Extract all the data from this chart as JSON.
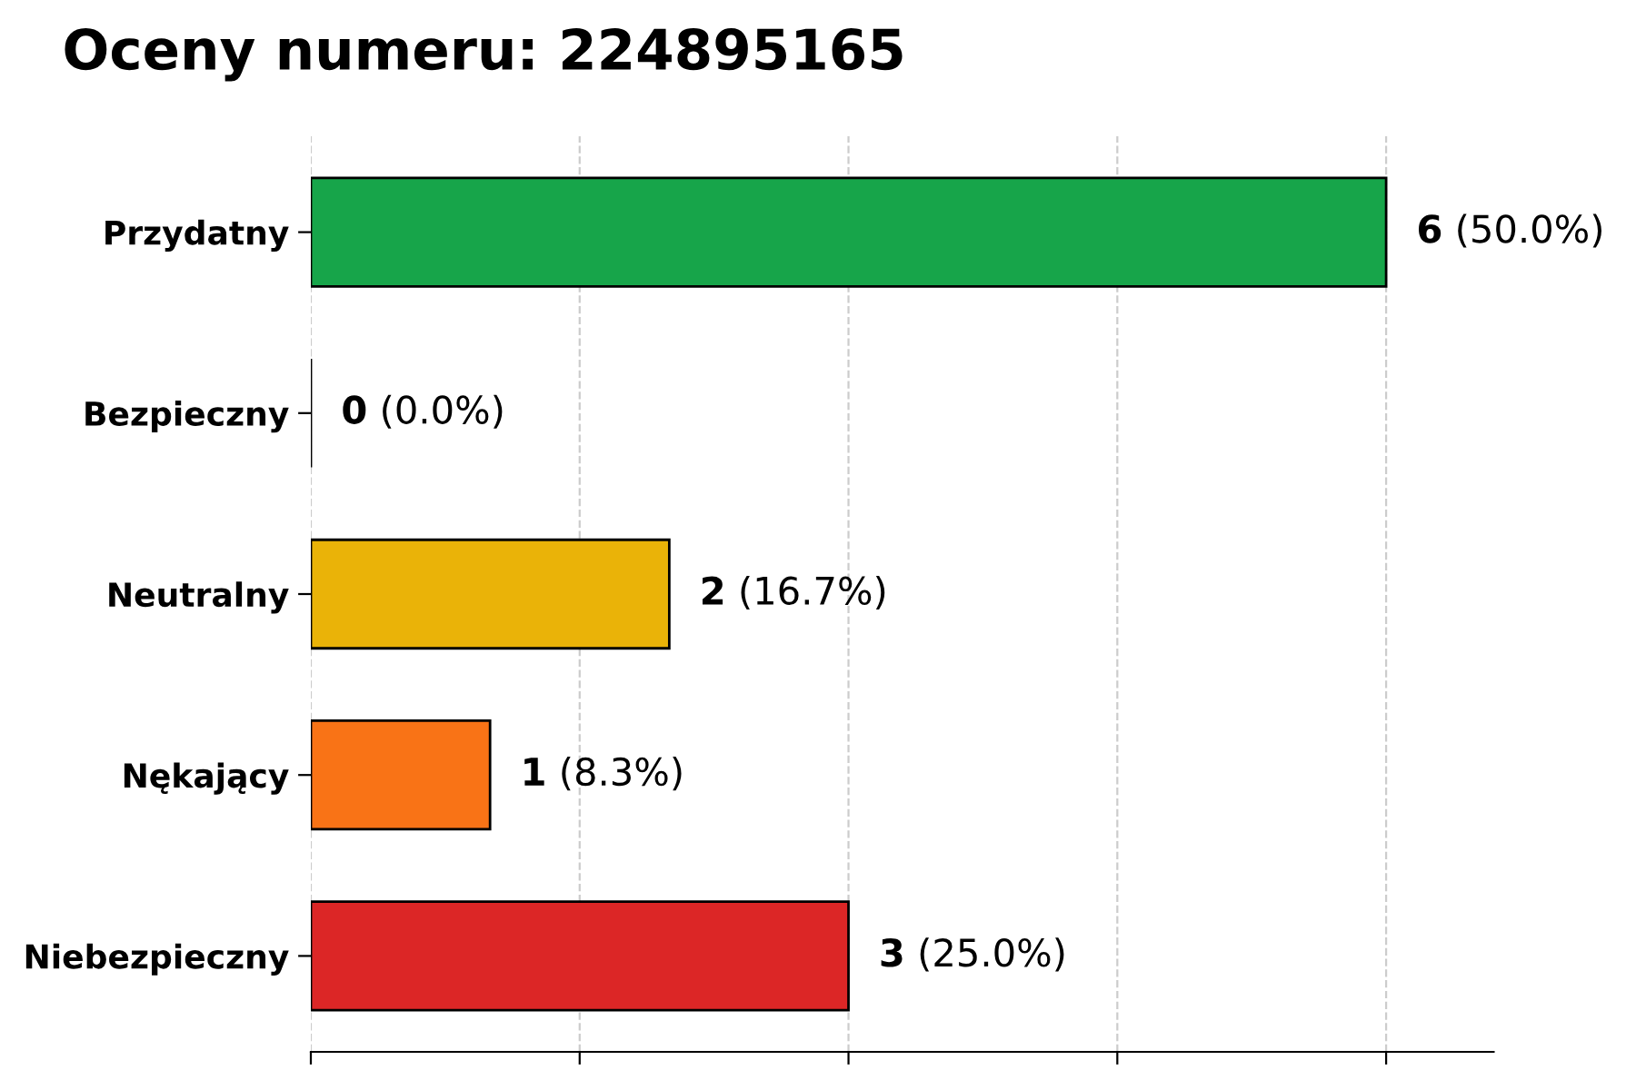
{
  "chart_data": {
    "type": "bar",
    "title": "Oceny numeru: 224895165",
    "orientation": "horizontal",
    "categories": [
      "Przydatny",
      "Bezpieczny",
      "Neutralny",
      "Nękający",
      "Niebezpieczny"
    ],
    "values": [
      6,
      0,
      2,
      1,
      3
    ],
    "colors": [
      "#17a54a",
      "#000000",
      "#eab308",
      "#f97316",
      "#dc2626"
    ],
    "value_labels": [
      "6 (50.0%)",
      "0 (0.0%)",
      "2 (16.7%)",
      "1 (8.3%)",
      "3 (25.0%)"
    ],
    "xlim": [
      0,
      6.6
    ],
    "xticks": [
      {
        "value": 0,
        "label": null
      },
      {
        "value": 1.5,
        "label": null
      },
      {
        "value": 3,
        "label": null
      },
      {
        "value": 4.5,
        "label": null
      },
      {
        "value": 6,
        "label": null
      }
    ],
    "grid": "x",
    "tick_labels": "y"
  }
}
